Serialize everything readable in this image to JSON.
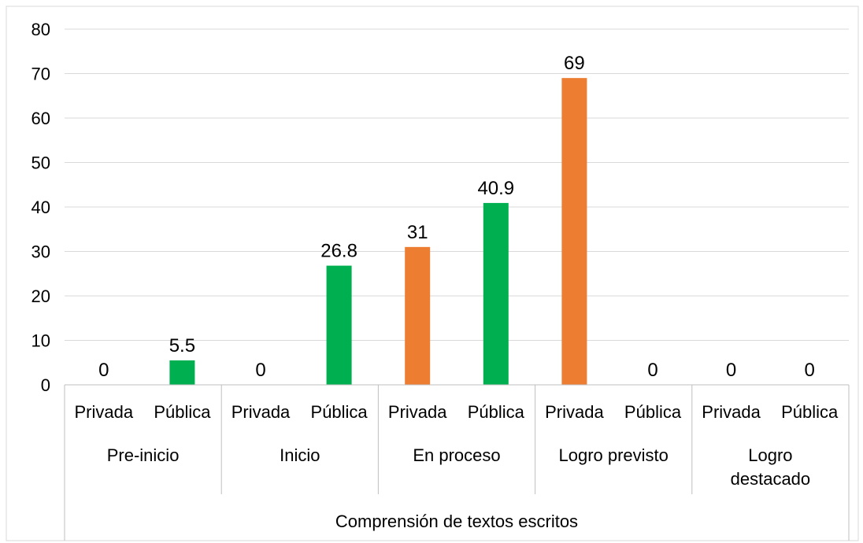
{
  "chart_data": {
    "type": "bar",
    "ylim": [
      0,
      80
    ],
    "yticks": [
      0,
      10,
      20,
      30,
      40,
      50,
      60,
      70,
      80
    ],
    "grid": true,
    "groups": [
      {
        "label_lines": [
          "Pre-inicio"
        ]
      },
      {
        "label_lines": [
          "Inicio"
        ]
      },
      {
        "label_lines": [
          "En proceso"
        ]
      },
      {
        "label_lines": [
          "Logro previsto"
        ]
      },
      {
        "label_lines": [
          "Logro",
          "destacado"
        ]
      }
    ],
    "subcategories": [
      "Privada",
      "Pública"
    ],
    "outer_label": "Comprensión de textos escritos",
    "values": [
      [
        0,
        5.5
      ],
      [
        0,
        26.8
      ],
      [
        31,
        40.9
      ],
      [
        69,
        0
      ],
      [
        0,
        0
      ]
    ],
    "data_labels": [
      [
        "0",
        "5.5"
      ],
      [
        "0",
        "26.8"
      ],
      [
        "31",
        "40.9"
      ],
      [
        "69",
        "0"
      ],
      [
        "0",
        "0"
      ]
    ],
    "colors": {
      "privada": "#ED7D31",
      "publica": "#00B050",
      "grid": "#D9D9D9",
      "axis": "#BFBFBF"
    }
  }
}
